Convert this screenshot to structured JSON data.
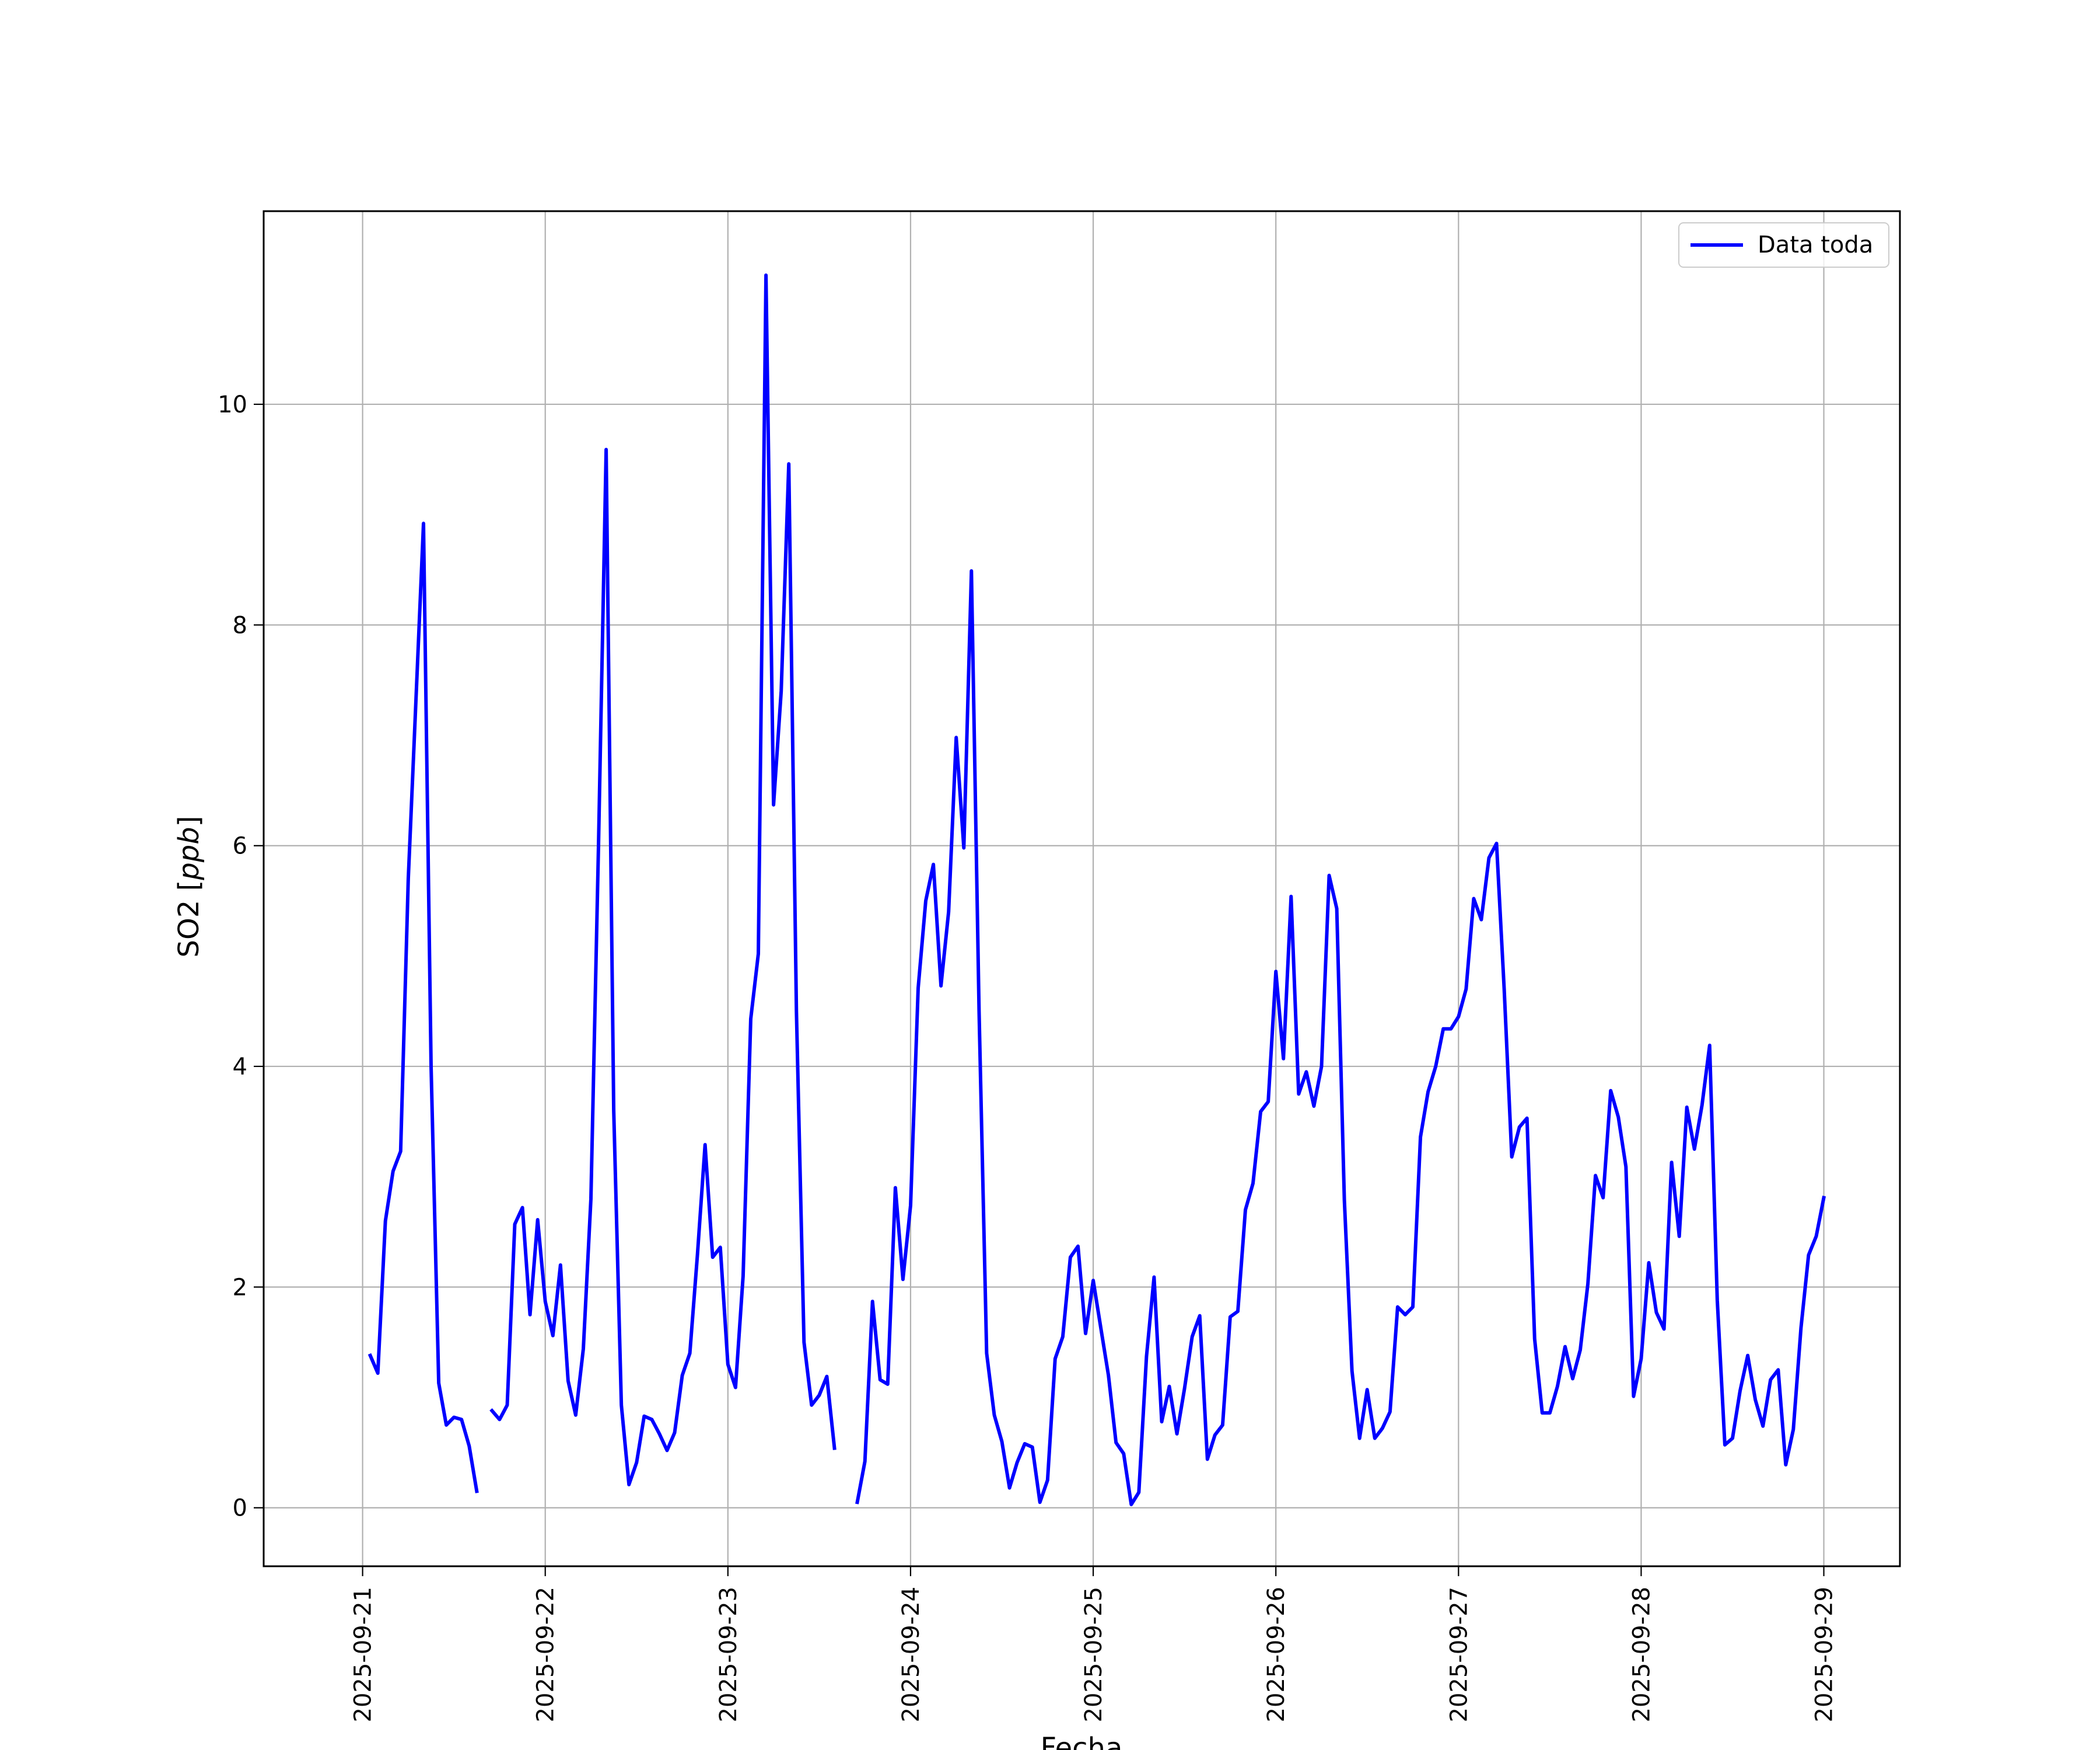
{
  "chart_data": {
    "type": "line",
    "xlabel": "Fecha",
    "ylabel_prefix": "SO2 [",
    "ylabel_unit": "ppb",
    "ylabel_suffix": "]",
    "x_ticks": [
      "2025-09-21",
      "2025-09-22",
      "2025-09-23",
      "2025-09-24",
      "2025-09-25",
      "2025-09-26",
      "2025-09-27",
      "2025-09-28",
      "2025-09-29"
    ],
    "y_ticks": [
      0,
      2,
      4,
      6,
      8,
      10
    ],
    "xlim": [
      "2025-09-20 11:00",
      "2025-09-29 10:00"
    ],
    "ylim": [
      -0.53,
      11.75
    ],
    "grid": true,
    "legend_position": "top-right",
    "series": [
      {
        "name": "Data toda",
        "color": "#0000ff",
        "segments": [
          [
            [
              "2025-09-21 01:00",
              1.38
            ],
            [
              "2025-09-21 02:00",
              1.22
            ],
            [
              "2025-09-21 03:00",
              2.6
            ],
            [
              "2025-09-21 04:00",
              3.05
            ],
            [
              "2025-09-21 05:00",
              3.23
            ],
            [
              "2025-09-21 06:00",
              5.7
            ],
            [
              "2025-09-21 07:00",
              7.3
            ],
            [
              "2025-09-21 08:00",
              8.92
            ],
            [
              "2025-09-21 09:00",
              4.0
            ],
            [
              "2025-09-21 10:00",
              1.13
            ],
            [
              "2025-09-21 11:00",
              0.75
            ],
            [
              "2025-09-21 12:00",
              0.82
            ],
            [
              "2025-09-21 13:00",
              0.8
            ],
            [
              "2025-09-21 14:00",
              0.56
            ],
            [
              "2025-09-21 15:00",
              0.15
            ]
          ],
          [
            [
              "2025-09-21 17:00",
              0.88
            ],
            [
              "2025-09-21 18:00",
              0.8
            ],
            [
              "2025-09-21 19:00",
              0.93
            ],
            [
              "2025-09-21 20:00",
              2.57
            ],
            [
              "2025-09-21 21:00",
              2.72
            ],
            [
              "2025-09-21 22:00",
              1.75
            ],
            [
              "2025-09-21 23:00",
              2.61
            ],
            [
              "2025-09-22 00:00",
              1.87
            ],
            [
              "2025-09-22 01:00",
              1.56
            ],
            [
              "2025-09-22 02:00",
              2.2
            ],
            [
              "2025-09-22 03:00",
              1.15
            ],
            [
              "2025-09-22 04:00",
              0.84
            ],
            [
              "2025-09-22 05:00",
              1.44
            ],
            [
              "2025-09-22 06:00",
              2.8
            ],
            [
              "2025-09-22 07:00",
              6.0
            ],
            [
              "2025-09-22 08:00",
              9.59
            ],
            [
              "2025-09-22 09:00",
              3.6
            ],
            [
              "2025-09-22 10:00",
              0.93
            ],
            [
              "2025-09-22 11:00",
              0.21
            ],
            [
              "2025-09-22 12:00",
              0.41
            ],
            [
              "2025-09-22 13:00",
              0.83
            ],
            [
              "2025-09-22 14:00",
              0.8
            ],
            [
              "2025-09-22 15:00",
              0.67
            ],
            [
              "2025-09-22 16:00",
              0.52
            ],
            [
              "2025-09-22 17:00",
              0.68
            ],
            [
              "2025-09-22 18:00",
              1.2
            ],
            [
              "2025-09-22 19:00",
              1.4
            ],
            [
              "2025-09-22 20:00",
              2.3
            ],
            [
              "2025-09-22 21:00",
              3.29
            ],
            [
              "2025-09-22 22:00",
              2.27
            ],
            [
              "2025-09-22 23:00",
              2.36
            ],
            [
              "2025-09-23 00:00",
              1.3
            ],
            [
              "2025-09-23 01:00",
              1.09
            ],
            [
              "2025-09-23 02:00",
              2.1
            ],
            [
              "2025-09-23 03:00",
              4.43
            ],
            [
              "2025-09-23 04:00",
              5.02
            ],
            [
              "2025-09-23 05:00",
              11.17
            ],
            [
              "2025-09-23 06:00",
              6.37
            ],
            [
              "2025-09-23 07:00",
              7.4
            ],
            [
              "2025-09-23 08:00",
              9.46
            ],
            [
              "2025-09-23 09:00",
              4.5
            ],
            [
              "2025-09-23 10:00",
              1.5
            ],
            [
              "2025-09-23 11:00",
              0.93
            ],
            [
              "2025-09-23 12:00",
              1.02
            ],
            [
              "2025-09-23 13:00",
              1.19
            ],
            [
              "2025-09-23 14:00",
              0.54
            ]
          ],
          [
            [
              "2025-09-23 17:00",
              0.05
            ],
            [
              "2025-09-23 18:00",
              0.42
            ],
            [
              "2025-09-23 19:00",
              1.87
            ],
            [
              "2025-09-23 20:00",
              1.16
            ],
            [
              "2025-09-23 21:00",
              1.12
            ],
            [
              "2025-09-23 22:00",
              2.9
            ],
            [
              "2025-09-23 23:00",
              2.07
            ],
            [
              "2025-09-24 00:00",
              2.74
            ],
            [
              "2025-09-24 01:00",
              4.71
            ],
            [
              "2025-09-24 02:00",
              5.5
            ],
            [
              "2025-09-24 03:00",
              5.83
            ],
            [
              "2025-09-24 04:00",
              4.73
            ],
            [
              "2025-09-24 05:00",
              5.4
            ],
            [
              "2025-09-24 06:00",
              6.98
            ],
            [
              "2025-09-24 07:00",
              5.98
            ],
            [
              "2025-09-24 08:00",
              8.49
            ],
            [
              "2025-09-24 09:00",
              4.5
            ],
            [
              "2025-09-24 10:00",
              1.4
            ],
            [
              "2025-09-24 11:00",
              0.84
            ],
            [
              "2025-09-24 12:00",
              0.6
            ],
            [
              "2025-09-24 13:00",
              0.18
            ],
            [
              "2025-09-24 14:00",
              0.41
            ],
            [
              "2025-09-24 15:00",
              0.58
            ],
            [
              "2025-09-24 16:00",
              0.55
            ],
            [
              "2025-09-24 17:00",
              0.05
            ],
            [
              "2025-09-24 18:00",
              0.25
            ],
            [
              "2025-09-24 19:00",
              1.35
            ],
            [
              "2025-09-24 20:00",
              1.55
            ],
            [
              "2025-09-24 21:00",
              2.27
            ],
            [
              "2025-09-24 22:00",
              2.37
            ],
            [
              "2025-09-24 23:00",
              1.58
            ],
            [
              "2025-09-25 00:00",
              2.06
            ],
            [
              "2025-09-25 01:00",
              1.63
            ],
            [
              "2025-09-25 02:00",
              1.2
            ],
            [
              "2025-09-25 03:00",
              0.59
            ],
            [
              "2025-09-25 04:00",
              0.49
            ],
            [
              "2025-09-25 05:00",
              0.03
            ],
            [
              "2025-09-25 06:00",
              0.14
            ],
            [
              "2025-09-25 07:00",
              1.37
            ],
            [
              "2025-09-25 08:00",
              2.09
            ],
            [
              "2025-09-25 09:00",
              0.78
            ],
            [
              "2025-09-25 10:00",
              1.1
            ],
            [
              "2025-09-25 11:00",
              0.67
            ],
            [
              "2025-09-25 12:00",
              1.08
            ],
            [
              "2025-09-25 13:00",
              1.55
            ],
            [
              "2025-09-25 14:00",
              1.74
            ],
            [
              "2025-09-25 15:00",
              0.44
            ],
            [
              "2025-09-25 16:00",
              0.66
            ],
            [
              "2025-09-25 17:00",
              0.75
            ],
            [
              "2025-09-25 18:00",
              1.73
            ],
            [
              "2025-09-25 19:00",
              1.78
            ],
            [
              "2025-09-25 20:00",
              2.7
            ],
            [
              "2025-09-25 21:00",
              2.94
            ],
            [
              "2025-09-25 22:00",
              3.59
            ],
            [
              "2025-09-25 23:00",
              3.68
            ],
            [
              "2025-09-26 00:00",
              4.86
            ],
            [
              "2025-09-26 01:00",
              4.07
            ],
            [
              "2025-09-26 02:00",
              5.54
            ],
            [
              "2025-09-26 03:00",
              3.75
            ],
            [
              "2025-09-26 04:00",
              3.95
            ],
            [
              "2025-09-26 05:00",
              3.64
            ],
            [
              "2025-09-26 06:00",
              4.0
            ],
            [
              "2025-09-26 07:00",
              5.73
            ],
            [
              "2025-09-26 08:00",
              5.43
            ],
            [
              "2025-09-26 09:00",
              2.79
            ],
            [
              "2025-09-26 10:00",
              1.24
            ],
            [
              "2025-09-26 11:00",
              0.63
            ],
            [
              "2025-09-26 12:00",
              1.07
            ],
            [
              "2025-09-26 13:00",
              0.63
            ],
            [
              "2025-09-26 14:00",
              0.72
            ],
            [
              "2025-09-26 15:00",
              0.87
            ],
            [
              "2025-09-26 16:00",
              1.82
            ],
            [
              "2025-09-26 17:00",
              1.75
            ],
            [
              "2025-09-26 18:00",
              1.82
            ],
            [
              "2025-09-26 19:00",
              3.36
            ],
            [
              "2025-09-26 20:00",
              3.77
            ],
            [
              "2025-09-26 21:00",
              4.0
            ],
            [
              "2025-09-26 22:00",
              4.34
            ],
            [
              "2025-09-26 23:00",
              4.34
            ],
            [
              "2025-09-27 00:00",
              4.45
            ],
            [
              "2025-09-27 01:00",
              4.7
            ],
            [
              "2025-09-27 02:00",
              5.52
            ],
            [
              "2025-09-27 03:00",
              5.33
            ],
            [
              "2025-09-27 04:00",
              5.89
            ],
            [
              "2025-09-27 05:00",
              6.02
            ],
            [
              "2025-09-27 06:00",
              4.7
            ],
            [
              "2025-09-27 07:00",
              3.18
            ],
            [
              "2025-09-27 08:00",
              3.45
            ],
            [
              "2025-09-27 09:00",
              3.53
            ],
            [
              "2025-09-27 10:00",
              1.53
            ],
            [
              "2025-09-27 11:00",
              0.86
            ],
            [
              "2025-09-27 12:00",
              0.86
            ],
            [
              "2025-09-27 13:00",
              1.1
            ],
            [
              "2025-09-27 14:00",
              1.46
            ],
            [
              "2025-09-27 15:00",
              1.17
            ],
            [
              "2025-09-27 16:00",
              1.43
            ],
            [
              "2025-09-27 17:00",
              2.03
            ],
            [
              "2025-09-27 18:00",
              3.01
            ],
            [
              "2025-09-27 19:00",
              2.81
            ],
            [
              "2025-09-27 20:00",
              3.78
            ],
            [
              "2025-09-27 21:00",
              3.54
            ],
            [
              "2025-09-27 22:00",
              3.09
            ],
            [
              "2025-09-27 23:00",
              1.01
            ],
            [
              "2025-09-28 00:00",
              1.35
            ],
            [
              "2025-09-28 01:00",
              2.22
            ],
            [
              "2025-09-28 02:00",
              1.77
            ],
            [
              "2025-09-28 03:00",
              1.62
            ],
            [
              "2025-09-28 04:00",
              3.13
            ],
            [
              "2025-09-28 05:00",
              2.46
            ],
            [
              "2025-09-28 06:00",
              3.63
            ],
            [
              "2025-09-28 07:00",
              3.25
            ],
            [
              "2025-09-28 08:00",
              3.65
            ],
            [
              "2025-09-28 09:00",
              4.19
            ],
            [
              "2025-09-28 10:00",
              1.88
            ],
            [
              "2025-09-28 11:00",
              0.57
            ],
            [
              "2025-09-28 12:00",
              0.63
            ],
            [
              "2025-09-28 13:00",
              1.06
            ],
            [
              "2025-09-28 14:00",
              1.38
            ],
            [
              "2025-09-28 15:00",
              0.98
            ],
            [
              "2025-09-28 16:00",
              0.74
            ],
            [
              "2025-09-28 17:00",
              1.16
            ],
            [
              "2025-09-28 18:00",
              1.25
            ],
            [
              "2025-09-28 19:00",
              0.39
            ],
            [
              "2025-09-28 20:00",
              0.71
            ],
            [
              "2025-09-28 21:00",
              1.63
            ],
            [
              "2025-09-28 22:00",
              2.29
            ],
            [
              "2025-09-28 23:00",
              2.46
            ],
            [
              "2025-09-29 00:00",
              2.81
            ]
          ]
        ]
      }
    ]
  }
}
